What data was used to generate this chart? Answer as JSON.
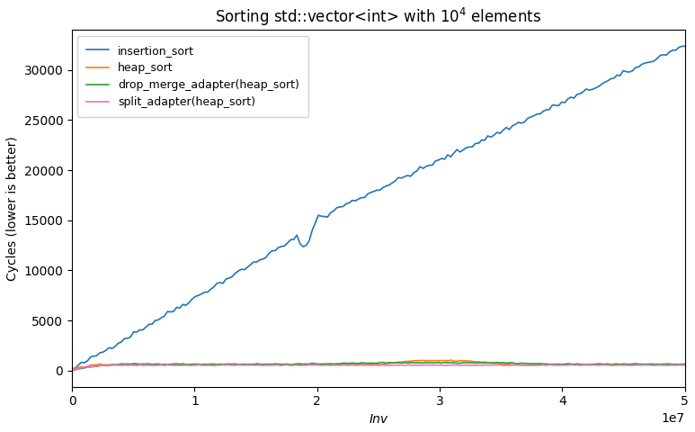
{
  "title": "Sorting std::vector<int> with $10^4$ elements",
  "xlabel": "Inv",
  "ylabel": "Cycles (lower is better)",
  "xlim": [
    0,
    50000000.0
  ],
  "ylim": [
    0,
    33000
  ],
  "yticks": [
    0,
    5000,
    10000,
    15000,
    20000,
    25000,
    30000
  ],
  "legend_labels": [
    "insertion_sort",
    "heap_sort",
    "drop_merge_adapter(heap_sort)",
    "split_adapter(heap_sort)"
  ],
  "colors": [
    "#1f77b4",
    "#ff7f0e",
    "#2ca02c",
    "#e377c2"
  ],
  "background_color": "#ffffff",
  "n_points": 200,
  "seed": 42
}
